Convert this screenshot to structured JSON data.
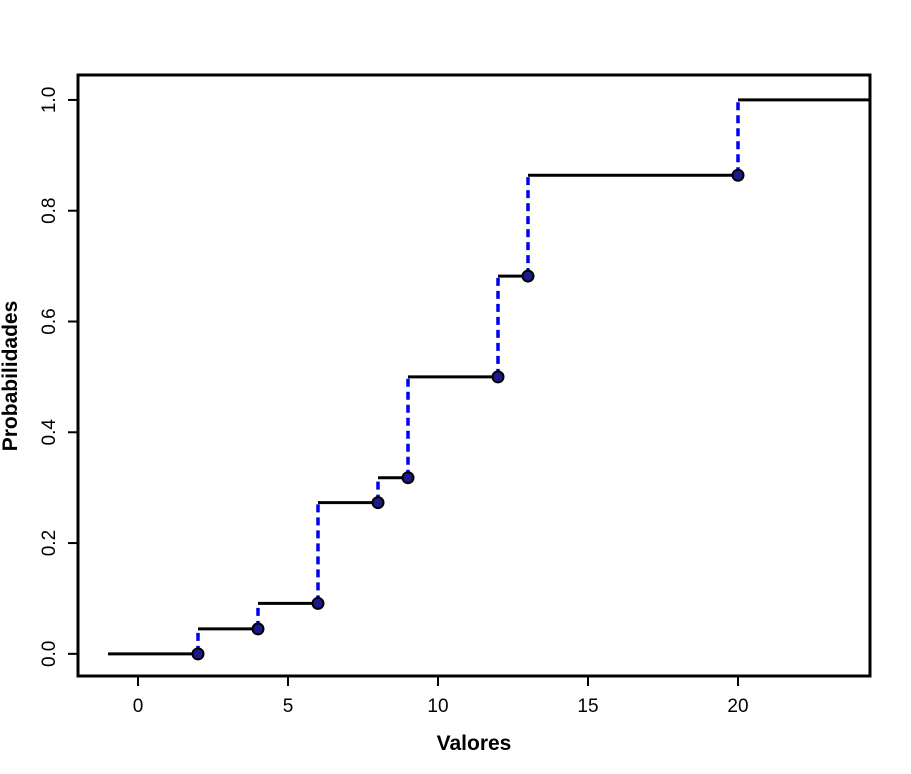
{
  "chart_data": {
    "type": "line",
    "subtype": "step-cdf",
    "title": "",
    "xlabel": "Valores",
    "ylabel": "Probabilidades",
    "xlim": [
      -2,
      24.4
    ],
    "ylim": [
      -0.04,
      1.045
    ],
    "x_ticks": [
      0,
      5,
      10,
      15,
      20
    ],
    "x_tick_labels": [
      "0",
      "5",
      "10",
      "15",
      "20"
    ],
    "y_ticks": [
      0.0,
      0.2,
      0.4,
      0.6,
      0.8,
      1.0
    ],
    "y_tick_labels": [
      "0.0",
      "0.2",
      "0.4",
      "0.6",
      "0.8",
      "1.0"
    ],
    "grid": false,
    "steps": [
      {
        "x_start": -1,
        "x_end": 2,
        "y": 0.0
      },
      {
        "x_start": 2,
        "x_end": 4,
        "y": 0.045
      },
      {
        "x_start": 4,
        "x_end": 6,
        "y": 0.091
      },
      {
        "x_start": 6,
        "x_end": 8,
        "y": 0.273
      },
      {
        "x_start": 8,
        "x_end": 9,
        "y": 0.318
      },
      {
        "x_start": 9,
        "x_end": 12,
        "y": 0.5
      },
      {
        "x_start": 12,
        "x_end": 13,
        "y": 0.682
      },
      {
        "x_start": 13,
        "x_end": 20,
        "y": 0.864
      },
      {
        "x_start": 20,
        "x_end": 24.4,
        "y": 1.0
      }
    ],
    "points": [
      {
        "x": 2,
        "y": 0.0
      },
      {
        "x": 4,
        "y": 0.045
      },
      {
        "x": 6,
        "y": 0.091
      },
      {
        "x": 8,
        "y": 0.273
      },
      {
        "x": 9,
        "y": 0.318
      },
      {
        "x": 12,
        "y": 0.5
      },
      {
        "x": 13,
        "y": 0.682
      },
      {
        "x": 20,
        "y": 0.864
      }
    ],
    "jumps": [
      {
        "x": 2,
        "y_from": 0.0,
        "y_to": 0.045
      },
      {
        "x": 4,
        "y_from": 0.045,
        "y_to": 0.091
      },
      {
        "x": 6,
        "y_from": 0.091,
        "y_to": 0.273
      },
      {
        "x": 8,
        "y_from": 0.273,
        "y_to": 0.318
      },
      {
        "x": 9,
        "y_from": 0.318,
        "y_to": 0.5
      },
      {
        "x": 12,
        "y_from": 0.5,
        "y_to": 0.682
      },
      {
        "x": 13,
        "y_from": 0.682,
        "y_to": 0.864
      },
      {
        "x": 20,
        "y_from": 0.864,
        "y_to": 1.0
      }
    ],
    "colors": {
      "step_line": "#000000",
      "jump_line": "#0000ee",
      "point_fill": "#1a1a8c",
      "point_stroke": "#000000",
      "frame": "#000000"
    }
  }
}
